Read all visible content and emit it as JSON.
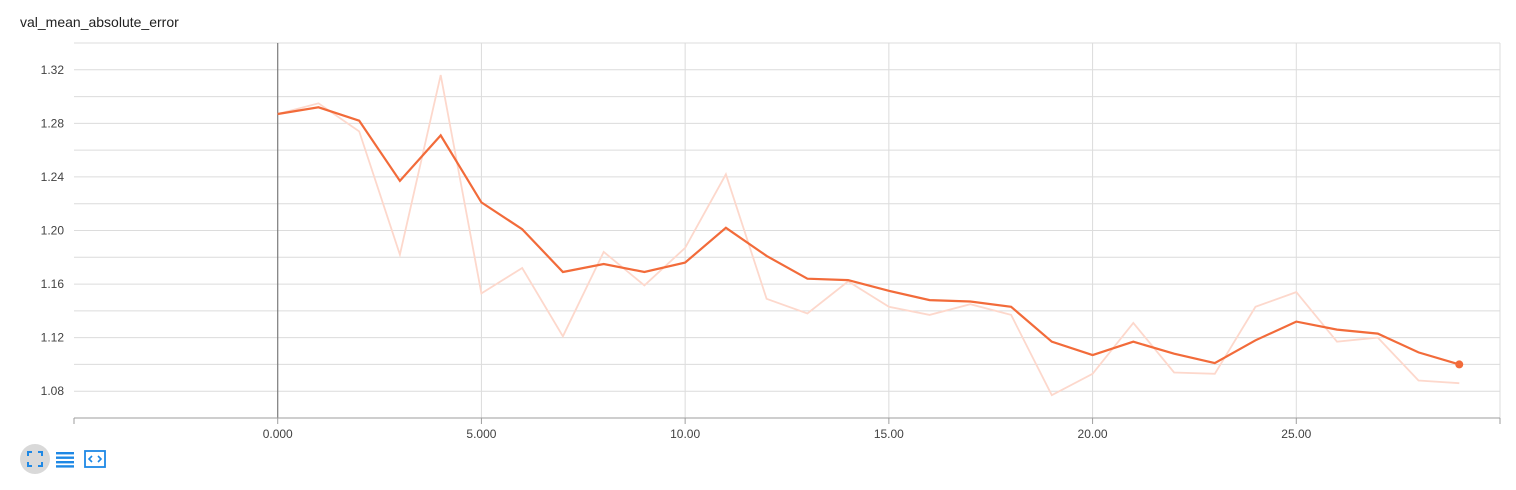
{
  "chart_data": {
    "type": "line",
    "title": "val_mean_absolute_error",
    "xlabel": "",
    "ylabel": "",
    "xlim": [
      -5,
      30
    ],
    "ylim": [
      1.06,
      1.34
    ],
    "x_ticks": [
      0,
      5,
      10,
      15,
      20,
      25
    ],
    "x_tick_labels": [
      "0.000",
      "5.000",
      "10.00",
      "15.00",
      "20.00",
      "25.00"
    ],
    "y_ticks": [
      1.08,
      1.12,
      1.16,
      1.2,
      1.24,
      1.28,
      1.32
    ],
    "y_tick_labels": [
      "1.08",
      "1.12",
      "1.16",
      "1.20",
      "1.24",
      "1.28",
      "1.32"
    ],
    "grid": true,
    "series": [
      {
        "role": "raw",
        "color": "#fdd8cc",
        "x": [
          0,
          1,
          2,
          3,
          4,
          5,
          6,
          7,
          8,
          9,
          10,
          11,
          12,
          13,
          14,
          15,
          16,
          17,
          18,
          19,
          20,
          21,
          22,
          23,
          24,
          25,
          26,
          27,
          28,
          29
        ],
        "y": [
          1.287,
          1.295,
          1.274,
          1.182,
          1.316,
          1.153,
          1.172,
          1.121,
          1.184,
          1.159,
          1.187,
          1.242,
          1.149,
          1.138,
          1.162,
          1.143,
          1.137,
          1.145,
          1.137,
          1.077,
          1.093,
          1.131,
          1.094,
          1.093,
          1.143,
          1.154,
          1.117,
          1.12,
          1.088,
          1.086
        ]
      },
      {
        "role": "smoothed",
        "color": "#f26b3a",
        "x": [
          0,
          1,
          2,
          3,
          4,
          5,
          6,
          7,
          8,
          9,
          10,
          11,
          12,
          13,
          14,
          15,
          16,
          17,
          18,
          19,
          20,
          21,
          22,
          23,
          24,
          25,
          26,
          27,
          28,
          29
        ],
        "y": [
          1.287,
          1.292,
          1.282,
          1.237,
          1.271,
          1.221,
          1.201,
          1.169,
          1.175,
          1.169,
          1.176,
          1.202,
          1.181,
          1.164,
          1.163,
          1.155,
          1.148,
          1.147,
          1.143,
          1.117,
          1.107,
          1.117,
          1.108,
          1.101,
          1.118,
          1.132,
          1.126,
          1.123,
          1.109,
          1.1
        ]
      }
    ]
  },
  "toolbar": {
    "buttons": [
      {
        "name": "fit-domain-icon",
        "color": "#1e88e5",
        "active": true
      },
      {
        "name": "log-scale-icon",
        "color": "#1e88e5",
        "active": false
      },
      {
        "name": "zoom-reset-icon",
        "color": "#1e88e5",
        "active": false
      }
    ]
  }
}
